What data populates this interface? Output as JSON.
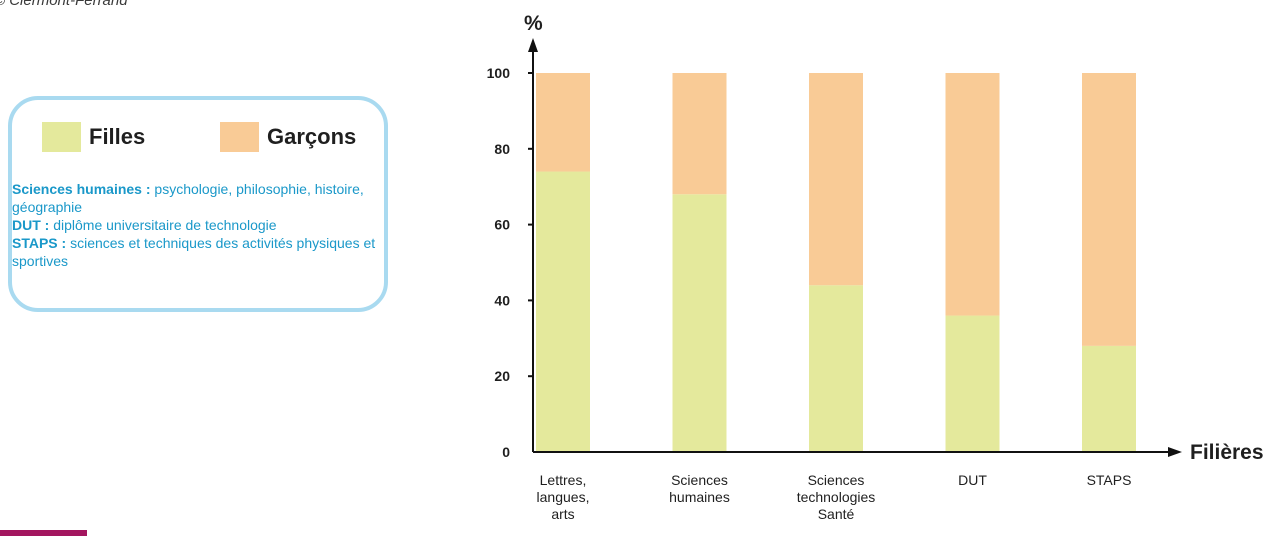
{
  "source_text": "© Clermont-Ferrand",
  "legend": {
    "items": [
      {
        "label": "Filles",
        "color": "#e4e99c"
      },
      {
        "label": "Garçons",
        "color": "#f9cb96"
      }
    ]
  },
  "glossary": [
    {
      "term": "Sciences humaines :",
      "definition": " psychologie, philosophie, histoire, géographie"
    },
    {
      "term": "DUT :",
      "definition": " diplôme universitaire de technologie"
    },
    {
      "term": "STAPS :",
      "definition": " sciences et techniques des activités physiques et sportives"
    }
  ],
  "chart_data": {
    "type": "bar",
    "stacked": true,
    "title": "",
    "xlabel": "Filières",
    "ylabel": "%",
    "ylim": [
      0,
      100
    ],
    "yticks": [
      0,
      20,
      40,
      60,
      80,
      100
    ],
    "grid": false,
    "categories": [
      [
        "Lettres,",
        "langues,",
        "arts"
      ],
      [
        "Sciences",
        "humaines"
      ],
      [
        "Sciences",
        "technologies",
        "Santé"
      ],
      [
        "DUT"
      ],
      [
        "STAPS"
      ]
    ],
    "series": [
      {
        "name": "Filles",
        "color": "#e4e99c",
        "values": [
          74,
          68,
          44,
          36,
          28
        ]
      },
      {
        "name": "Garçons",
        "color": "#f9cb96",
        "values": [
          26,
          32,
          56,
          64,
          72
        ]
      }
    ]
  }
}
